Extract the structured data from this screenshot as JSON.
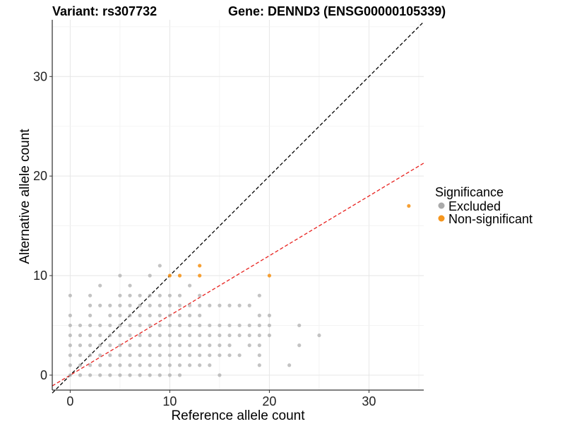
{
  "chart_data": {
    "type": "scatter",
    "title_left": "Variant: rs307732",
    "title_right": "Gene: DENND3 (ENSG00000105339)",
    "xlabel": "Reference allele count",
    "ylabel": "Alternative allele count",
    "xlim": [
      -1.8,
      35.5
    ],
    "ylim": [
      -1.5,
      35.7
    ],
    "x_ticks": [
      0,
      10,
      20,
      30
    ],
    "y_ticks": [
      0,
      10,
      20,
      30
    ],
    "grid": true,
    "legend": {
      "title": "Significance",
      "position": "right",
      "entries": [
        {
          "label": "Excluded",
          "color": "#aaaaaa"
        },
        {
          "label": "Non-significant",
          "color": "#f5961e"
        }
      ]
    },
    "reference_lines": [
      {
        "name": "identity",
        "slope": 1,
        "intercept": 0,
        "color": "#000000",
        "style": "dashed"
      },
      {
        "name": "fit",
        "slope": 0.6,
        "intercept": 0,
        "color": "#e8211e",
        "style": "dashed"
      }
    ],
    "series": [
      {
        "name": "Excluded",
        "color": "#aaaaaa",
        "points": [
          [
            0,
            0
          ],
          [
            0,
            1
          ],
          [
            0,
            2
          ],
          [
            0,
            3
          ],
          [
            0,
            4
          ],
          [
            0,
            5
          ],
          [
            0,
            6
          ],
          [
            0,
            8
          ],
          [
            1,
            0
          ],
          [
            1,
            1
          ],
          [
            1,
            2
          ],
          [
            1,
            3
          ],
          [
            1,
            4
          ],
          [
            1,
            5
          ],
          [
            2,
            0
          ],
          [
            2,
            1
          ],
          [
            2,
            2
          ],
          [
            2,
            3
          ],
          [
            2,
            4
          ],
          [
            2,
            5
          ],
          [
            2,
            6
          ],
          [
            2,
            7
          ],
          [
            2,
            8
          ],
          [
            3,
            0
          ],
          [
            3,
            1
          ],
          [
            3,
            2
          ],
          [
            3,
            3
          ],
          [
            3,
            4
          ],
          [
            3,
            5
          ],
          [
            3,
            7
          ],
          [
            3,
            9
          ],
          [
            4,
            0
          ],
          [
            4,
            1
          ],
          [
            4,
            2
          ],
          [
            4,
            3
          ],
          [
            4,
            4
          ],
          [
            4,
            5
          ],
          [
            4,
            6
          ],
          [
            4,
            7
          ],
          [
            5,
            0
          ],
          [
            5,
            1
          ],
          [
            5,
            2
          ],
          [
            5,
            3
          ],
          [
            5,
            4
          ],
          [
            5,
            5
          ],
          [
            5,
            6
          ],
          [
            5,
            7
          ],
          [
            5,
            8
          ],
          [
            5,
            10
          ],
          [
            6,
            0
          ],
          [
            6,
            1
          ],
          [
            6,
            2
          ],
          [
            6,
            3
          ],
          [
            6,
            4
          ],
          [
            6,
            5
          ],
          [
            6,
            6
          ],
          [
            6,
            7
          ],
          [
            6,
            8
          ],
          [
            6,
            9
          ],
          [
            7,
            0
          ],
          [
            7,
            1
          ],
          [
            7,
            2
          ],
          [
            7,
            3
          ],
          [
            7,
            4
          ],
          [
            7,
            5
          ],
          [
            7,
            6
          ],
          [
            7,
            7
          ],
          [
            7,
            8
          ],
          [
            8,
            0
          ],
          [
            8,
            1
          ],
          [
            8,
            2
          ],
          [
            8,
            3
          ],
          [
            8,
            4
          ],
          [
            8,
            5
          ],
          [
            8,
            6
          ],
          [
            8,
            7
          ],
          [
            8,
            8
          ],
          [
            8,
            10
          ],
          [
            9,
            0
          ],
          [
            9,
            1
          ],
          [
            9,
            2
          ],
          [
            9,
            3
          ],
          [
            9,
            4
          ],
          [
            9,
            5
          ],
          [
            9,
            6
          ],
          [
            9,
            7
          ],
          [
            9,
            8
          ],
          [
            9,
            11
          ],
          [
            10,
            0
          ],
          [
            10,
            1
          ],
          [
            10,
            2
          ],
          [
            10,
            3
          ],
          [
            10,
            4
          ],
          [
            10,
            5
          ],
          [
            10,
            6
          ],
          [
            10,
            7
          ],
          [
            10,
            8
          ],
          [
            11,
            0
          ],
          [
            11,
            1
          ],
          [
            11,
            2
          ],
          [
            11,
            3
          ],
          [
            11,
            4
          ],
          [
            11,
            5
          ],
          [
            11,
            6
          ],
          [
            11,
            7
          ],
          [
            11,
            8
          ],
          [
            12,
            1
          ],
          [
            12,
            2
          ],
          [
            12,
            3
          ],
          [
            12,
            4
          ],
          [
            12,
            5
          ],
          [
            12,
            6
          ],
          [
            12,
            7
          ],
          [
            12,
            9
          ],
          [
            13,
            1
          ],
          [
            13,
            2
          ],
          [
            13,
            3
          ],
          [
            13,
            4
          ],
          [
            13,
            5
          ],
          [
            13,
            6
          ],
          [
            13,
            7
          ],
          [
            13,
            8
          ],
          [
            14,
            1
          ],
          [
            14,
            2
          ],
          [
            14,
            3
          ],
          [
            14,
            4
          ],
          [
            14,
            5
          ],
          [
            14,
            7
          ],
          [
            15,
            0
          ],
          [
            15,
            2
          ],
          [
            15,
            3
          ],
          [
            15,
            4
          ],
          [
            15,
            5
          ],
          [
            15,
            7
          ],
          [
            16,
            2
          ],
          [
            16,
            3
          ],
          [
            16,
            4
          ],
          [
            16,
            5
          ],
          [
            16,
            7
          ],
          [
            17,
            2
          ],
          [
            17,
            4
          ],
          [
            17,
            5
          ],
          [
            17,
            7
          ],
          [
            18,
            3
          ],
          [
            18,
            4
          ],
          [
            18,
            5
          ],
          [
            18,
            7
          ],
          [
            19,
            2
          ],
          [
            19,
            3
          ],
          [
            19,
            4
          ],
          [
            19,
            5
          ],
          [
            19,
            6
          ],
          [
            19,
            8
          ],
          [
            20,
            4
          ],
          [
            20,
            5
          ],
          [
            20,
            6
          ],
          [
            22,
            1
          ],
          [
            23,
            3
          ],
          [
            23,
            5
          ],
          [
            25,
            4
          ],
          [
            19,
            1
          ]
        ]
      },
      {
        "name": "Non-significant",
        "color": "#f5961e",
        "points": [
          [
            10,
            10
          ],
          [
            11,
            10
          ],
          [
            13,
            10
          ],
          [
            13,
            11
          ],
          [
            20,
            10
          ],
          [
            34,
            17
          ]
        ]
      }
    ]
  }
}
